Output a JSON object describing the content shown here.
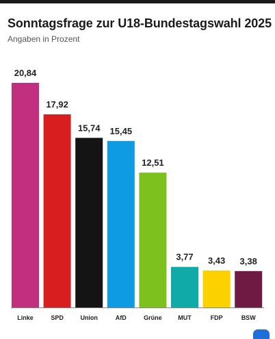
{
  "page": {
    "title": "Sonntagsfrage zur U18-Bundestagswahl 2025",
    "subtitle": "Angaben in Prozent"
  },
  "chart_data": {
    "type": "bar",
    "title": "Sonntagsfrage zur U18-Bundestagswahl 2025",
    "subtitle": "Angaben in Prozent",
    "categories": [
      "Linke",
      "SPD",
      "Union",
      "AfD",
      "Grüne",
      "MUT",
      "FDP",
      "BSW"
    ],
    "values": [
      20.84,
      17.92,
      15.74,
      15.45,
      12.51,
      3.77,
      3.43,
      3.38
    ],
    "value_labels": [
      "20,84",
      "17,92",
      "15,74",
      "15,45",
      "12,51",
      "3,77",
      "3,43",
      "3,38"
    ],
    "colors": [
      "#c1307e",
      "#d81e1e",
      "#141414",
      "#0f9be2",
      "#7cc11e",
      "#10aaa9",
      "#fcd100",
      "#6e1a42"
    ],
    "xlabel": "",
    "ylabel": "",
    "ylim": [
      0,
      20.84
    ],
    "grid": false,
    "legend": "none"
  }
}
